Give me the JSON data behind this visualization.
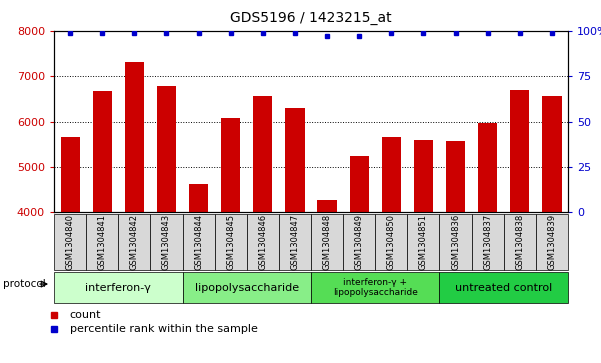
{
  "title": "GDS5196 / 1423215_at",
  "samples": [
    "GSM1304840",
    "GSM1304841",
    "GSM1304842",
    "GSM1304843",
    "GSM1304844",
    "GSM1304845",
    "GSM1304846",
    "GSM1304847",
    "GSM1304848",
    "GSM1304849",
    "GSM1304850",
    "GSM1304851",
    "GSM1304836",
    "GSM1304837",
    "GSM1304838",
    "GSM1304839"
  ],
  "counts": [
    5650,
    6680,
    7320,
    6780,
    4620,
    6080,
    6560,
    6310,
    4270,
    5250,
    5660,
    5600,
    5580,
    5960,
    6700,
    6560
  ],
  "percentile_ranks": [
    99,
    99,
    99,
    99,
    99,
    99,
    99,
    99,
    97,
    97,
    99,
    99,
    99,
    99,
    99,
    99
  ],
  "ylim_left": [
    4000,
    8000
  ],
  "ylim_right": [
    0,
    100
  ],
  "yticks_left": [
    4000,
    5000,
    6000,
    7000,
    8000
  ],
  "yticks_right": [
    0,
    25,
    50,
    75,
    100
  ],
  "bar_color": "#cc0000",
  "dot_color": "#0000cc",
  "groups": [
    {
      "label": "interferon-γ",
      "start": 0,
      "end": 4,
      "color": "#ccffcc"
    },
    {
      "label": "lipopolysaccharide",
      "start": 4,
      "end": 8,
      "color": "#88ee88"
    },
    {
      "label": "interferon-γ +\nlipopolysaccharide",
      "start": 8,
      "end": 12,
      "color": "#55dd55"
    },
    {
      "label": "untreated control",
      "start": 12,
      "end": 16,
      "color": "#22cc44"
    }
  ],
  "legend_count_label": "count",
  "legend_pct_label": "percentile rank within the sample",
  "protocol_label": "protocol"
}
